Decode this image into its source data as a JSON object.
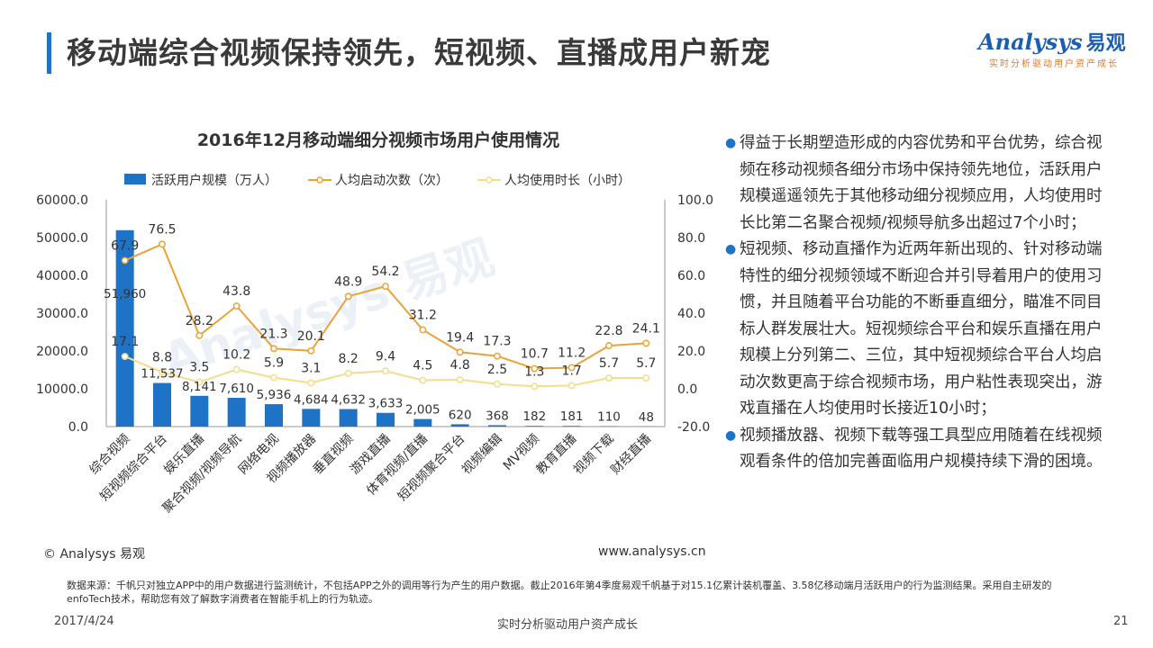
{
  "header": {
    "title": "移动端综合视频保持领先，短视频、直播成用户新宠",
    "logo_text": "nalysys",
    "logo_prefix": "A",
    "logo_cn": "易观",
    "logo_tagline": "实时分析驱动用户资产成长"
  },
  "chart_data": {
    "type": "bar",
    "title": "2016年12月移动端细分视频市场用户使用情况",
    "categories": [
      "综合视频",
      "短视频综合平台",
      "娱乐直播",
      "聚合视频/视频导航",
      "网络电视",
      "视频播放器",
      "垂直视频",
      "游戏直播",
      "体育视频/直播",
      "短视频聚合平台",
      "视频编辑",
      "MV视频",
      "教育直播",
      "视频下载",
      "财经直播"
    ],
    "series": [
      {
        "name": "活跃用户规模（万人）",
        "kind": "bar",
        "axis": "left",
        "color": "#1f73c6",
        "values": [
          51960,
          11537,
          8141,
          7610,
          5936,
          4684,
          4632,
          3633,
          2005,
          620,
          368,
          182,
          181,
          110,
          48
        ],
        "labels": [
          "51,960",
          "11,537",
          "8,141",
          "7,610",
          "5,936",
          "4,684",
          "4,632",
          "3,633",
          "2,005",
          "620",
          "368",
          "182",
          "181",
          "110",
          "48"
        ]
      },
      {
        "name": "人均启动次数（次）",
        "kind": "line",
        "axis": "right",
        "color": "#e8a33a",
        "values": [
          67.9,
          76.5,
          28.2,
          43.8,
          21.3,
          20.1,
          48.9,
          54.2,
          31.2,
          19.4,
          17.3,
          10.7,
          11.2,
          22.8,
          24.1
        ],
        "labels": [
          "67.9",
          "76.5",
          "28.2",
          "43.8",
          "21.3",
          "20.1",
          "48.9",
          "54.2",
          "31.2",
          "19.4",
          "17.3",
          "10.7",
          "11.2",
          "22.8",
          "24.1"
        ]
      },
      {
        "name": "人均使用时长（小时）",
        "kind": "line",
        "axis": "right",
        "color": "#f3dc8a",
        "values": [
          17.1,
          8.8,
          3.5,
          10.2,
          5.9,
          3.1,
          8.2,
          9.4,
          4.5,
          4.8,
          2.5,
          1.3,
          1.7,
          5.7,
          5.7
        ],
        "labels": [
          "17.1",
          "8.8",
          "3.5",
          "10.2",
          "5.9",
          "3.1",
          "8.2",
          "9.4",
          "4.5",
          "4.8",
          "2.5",
          "1.3",
          "1.7",
          "5.7",
          "5.7"
        ]
      }
    ],
    "y_left": {
      "ylim": [
        0,
        60000
      ],
      "ticks": [
        "0.0",
        "10000.0",
        "20000.0",
        "30000.0",
        "40000.0",
        "50000.0",
        "60000.0"
      ]
    },
    "y_right": {
      "ylim": [
        -20,
        100
      ],
      "ticks": [
        "-20.0",
        "0.0",
        "20.0",
        "40.0",
        "60.0",
        "80.0",
        "100.0"
      ]
    },
    "legend_position": "top",
    "grid": false,
    "watermark": "Analysys 易观"
  },
  "bullets": [
    "得益于长期塑造形成的内容优势和平台优势，综合视频在移动视频各细分市场中保持领先地位，活跃用户规模遥遥领先于其他移动细分视频应用，人均使用时长比第二名聚合视频/视频导航多出超过7个小时；",
    "短视频、移动直播作为近两年新出现的、针对移动端特性的细分视频领域不断迎合并引导着用户的使用习惯，并且随着平台功能的不断垂直细分，瞄准不同目标人群发展壮大。短视频综合平台和娱乐直播在用户规模上分列第二、三位，其中短视频综合平台人均启动次数更高于综合视频市场，用户粘性表现突出，游戏直播在人均使用时长接近10小时；",
    "视频播放器、视频下载等强工具型应用随着在线视频观看条件的倍加完善面临用户规模持续下滑的困境。"
  ],
  "footer": {
    "copyright": "© Analysys 易观",
    "website": "www.analysys.cn",
    "source": "数据来源：千帆只对独立APP中的用户数据进行监测统计，不包括APP之外的调用等行为产生的用户数据。截止2016年第4季度易观千帆基于对15.1亿累计装机覆盖、3.58亿移动端月活跃用户的行为监测结果。采用自主研发的enfoTech技术，帮助您有效了解数字消费者在智能手机上的行为轨迹。",
    "date": "2017/4/24",
    "tagline": "实时分析驱动用户资产成长",
    "page": "21"
  }
}
